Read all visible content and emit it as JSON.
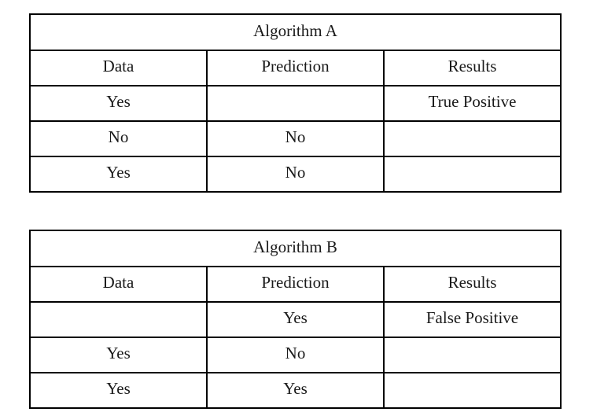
{
  "tables": [
    {
      "title": "Algorithm A",
      "headers": [
        "Data",
        "Prediction",
        "Results"
      ],
      "rows": [
        [
          "Yes",
          "",
          "True Positive"
        ],
        [
          "No",
          "No",
          ""
        ],
        [
          "Yes",
          "No",
          ""
        ]
      ]
    },
    {
      "title": "Algorithm B",
      "headers": [
        "Data",
        "Prediction",
        "Results"
      ],
      "rows": [
        [
          "",
          "Yes",
          "False Positive"
        ],
        [
          "Yes",
          "No",
          ""
        ],
        [
          "Yes",
          "Yes",
          ""
        ]
      ]
    }
  ]
}
